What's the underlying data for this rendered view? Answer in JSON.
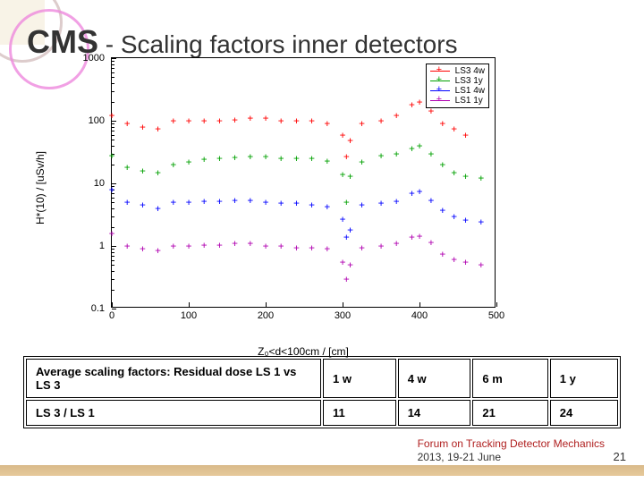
{
  "title_prefix": "CMS",
  "title_rest": " - Scaling factors inner detectors",
  "chart": {
    "xlim": [
      0,
      500
    ],
    "xtick_step": 100,
    "ylog": true,
    "ylim_exp": [
      -1,
      3
    ],
    "xlabel": "Z₀<d<100cm / [cm]",
    "ylabel": "H*(10) / [uSv/h]",
    "plot_bg": "#ffffff",
    "series": [
      {
        "name": "LS3 4w",
        "color": "#ff0000",
        "x": [
          0,
          20,
          40,
          60,
          80,
          100,
          120,
          140,
          160,
          180,
          200,
          220,
          240,
          260,
          280,
          300,
          305,
          310,
          325,
          350,
          370,
          390,
          400,
          415,
          430,
          445,
          460
        ],
        "y": [
          120,
          90,
          80,
          75,
          100,
          100,
          100,
          100,
          105,
          110,
          110,
          100,
          100,
          100,
          90,
          60,
          27,
          48,
          90,
          100,
          120,
          180,
          200,
          145,
          90,
          75,
          60
        ]
      },
      {
        "name": "LS3 1y",
        "color": "#00a000",
        "x": [
          0,
          20,
          40,
          60,
          80,
          100,
          120,
          140,
          160,
          180,
          200,
          220,
          240,
          260,
          280,
          300,
          305,
          310,
          325,
          350,
          370,
          390,
          400,
          415,
          430,
          445,
          460,
          480
        ],
        "y": [
          28,
          18,
          16,
          15,
          20,
          22,
          24,
          25,
          26,
          27,
          27,
          25,
          25,
          25,
          23,
          14,
          5,
          13,
          22,
          28,
          30,
          36,
          40,
          30,
          20,
          15,
          13,
          12
        ]
      },
      {
        "name": "LS1 4w",
        "color": "#0000ff",
        "x": [
          0,
          20,
          40,
          60,
          80,
          100,
          120,
          140,
          160,
          180,
          200,
          220,
          240,
          260,
          280,
          300,
          305,
          310,
          325,
          350,
          370,
          390,
          400,
          415,
          430,
          445,
          460,
          480
        ],
        "y": [
          8,
          5,
          4.5,
          4,
          5,
          5,
          5.2,
          5.2,
          5.3,
          5.3,
          5,
          4.8,
          4.8,
          4.6,
          4.3,
          2.7,
          1.4,
          1.8,
          4.5,
          4.8,
          5.2,
          7,
          7.5,
          5.3,
          3.7,
          3,
          2.6,
          2.4
        ]
      },
      {
        "name": "LS1 1y",
        "color": "#b000b0",
        "x": [
          0,
          20,
          40,
          60,
          80,
          100,
          120,
          140,
          160,
          180,
          200,
          220,
          240,
          260,
          280,
          300,
          305,
          310,
          325,
          350,
          370,
          390,
          400,
          415,
          430,
          445,
          460,
          480
        ],
        "y": [
          1.6,
          1.0,
          0.9,
          0.85,
          1.0,
          1.0,
          1.05,
          1.05,
          1.1,
          1.1,
          1.0,
          1.0,
          0.95,
          0.95,
          0.9,
          0.55,
          0.3,
          0.5,
          0.95,
          1.0,
          1.1,
          1.4,
          1.45,
          1.15,
          0.75,
          0.62,
          0.55,
          0.5
        ]
      }
    ],
    "legend": [
      "LS3 4w",
      "LS3 1y",
      "LS1 4w",
      "LS1 1y"
    ]
  },
  "yticks": [
    {
      "exp": -1,
      "label": "0.1"
    },
    {
      "exp": 0,
      "label": "1"
    },
    {
      "exp": 1,
      "label": "10"
    },
    {
      "exp": 2,
      "label": "100"
    },
    {
      "exp": 3,
      "label": "1000"
    }
  ],
  "table": {
    "row1_label": "Average scaling factors: Residual dose LS 1 vs LS 3",
    "cols": [
      "1 w",
      "4 w",
      "6 m",
      "1 y"
    ],
    "row2_label": "LS 3 / LS 1",
    "row2_vals": [
      "11",
      "14",
      "21",
      "24"
    ]
  },
  "footer_line1": "Forum on Tracking Detector Mechanics",
  "footer_line2": "2013, 19-21 June",
  "page_number": "21"
}
